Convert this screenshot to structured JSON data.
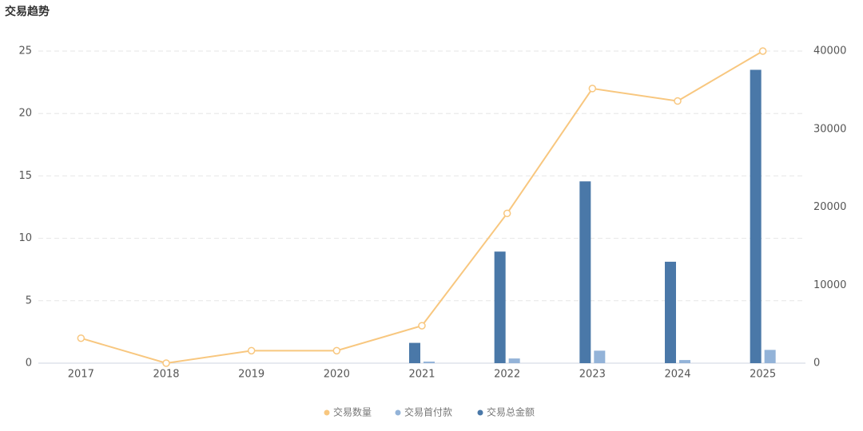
{
  "chart_data": {
    "type": "combo",
    "title": "交易趋势",
    "categories": [
      "2017",
      "2018",
      "2019",
      "2020",
      "2021",
      "2022",
      "2023",
      "2024",
      "2025"
    ],
    "series": [
      {
        "name": "交易数量",
        "type": "line",
        "color": "#f8c77f",
        "axis": "y",
        "values": [
          2,
          0,
          1,
          1,
          3,
          12,
          22,
          21,
          25
        ]
      },
      {
        "name": "交易首付款",
        "type": "bar",
        "color": "#93b3d8",
        "axis": "y2",
        "values": [
          0,
          0,
          0,
          0,
          200,
          600,
          1600,
          400,
          1700
        ]
      },
      {
        "name": "交易总金额",
        "type": "bar",
        "color": "#4a78a8",
        "axis": "y2",
        "values": [
          0,
          0,
          0,
          0,
          2600,
          14300,
          23300,
          13000,
          37600
        ]
      }
    ],
    "ylim": [
      0,
      25
    ],
    "yticks": [
      0,
      5,
      10,
      15,
      20,
      25
    ],
    "y2lim": [
      0,
      40000
    ],
    "y2ticks": [
      0,
      10000,
      20000,
      30000,
      40000
    ],
    "grid": true,
    "legend": "bottom"
  }
}
